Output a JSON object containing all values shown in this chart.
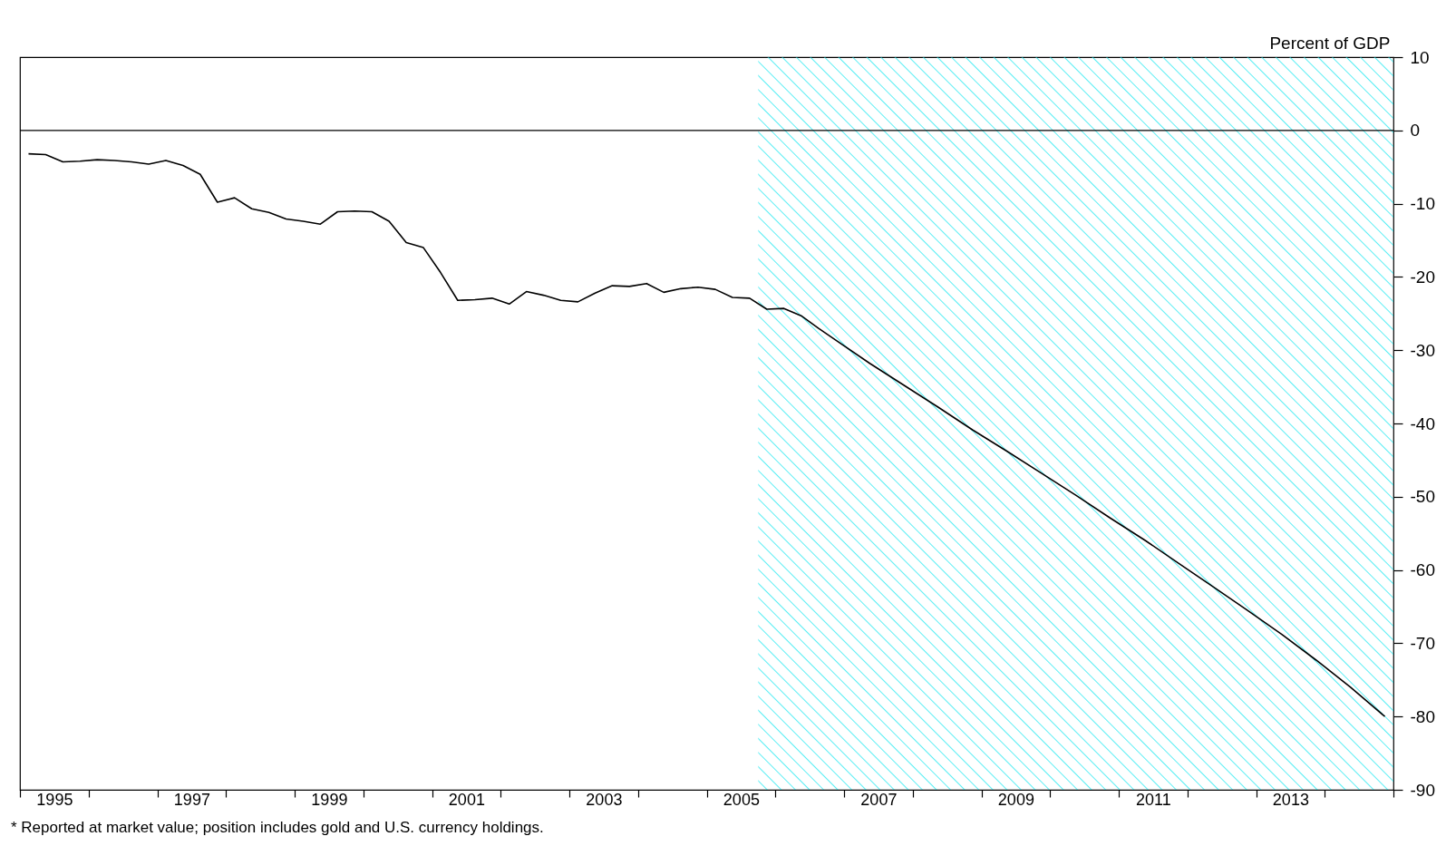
{
  "chart_data": {
    "type": "line",
    "ylabel": "Percent of GDP",
    "annotations": [
      "* Reported at market value; position includes gold and U.S. currency holdings."
    ],
    "xlim": [
      1995,
      2015
    ],
    "ylim": [
      -90,
      10
    ],
    "yticks": [
      10,
      0,
      -10,
      -20,
      -30,
      -40,
      -50,
      -60,
      -70,
      -80,
      -90
    ],
    "xticks": [
      {
        "value": 1995,
        "label": null
      },
      {
        "value": 1996,
        "label": null
      },
      {
        "value": 1997,
        "label": null
      },
      {
        "value": 1998,
        "label": null
      },
      {
        "value": 1999,
        "label": null
      },
      {
        "value": 2000,
        "label": null
      },
      {
        "value": 2001,
        "label": null
      },
      {
        "value": 2002,
        "label": null
      },
      {
        "value": 2003,
        "label": null
      },
      {
        "value": 2004,
        "label": null
      },
      {
        "value": 2005,
        "label": null
      },
      {
        "value": 2006,
        "label": null
      },
      {
        "value": 2007,
        "label": null
      },
      {
        "value": 2008,
        "label": null
      },
      {
        "value": 2009,
        "label": null
      },
      {
        "value": 2010,
        "label": null
      },
      {
        "value": 2011,
        "label": null
      },
      {
        "value": 2012,
        "label": null
      },
      {
        "value": 2013,
        "label": null
      },
      {
        "value": 2014,
        "label": null
      },
      {
        "value": 2015,
        "label": null
      },
      {
        "value": 1995.5,
        "label": "1995"
      },
      {
        "value": 1997.5,
        "label": "1997"
      },
      {
        "value": 1999.5,
        "label": "1999"
      },
      {
        "value": 2001.5,
        "label": "2001"
      },
      {
        "value": 2003.5,
        "label": "2003"
      },
      {
        "value": 2005.5,
        "label": "2005"
      },
      {
        "value": 2007.5,
        "label": "2007"
      },
      {
        "value": 2009.5,
        "label": "2009"
      },
      {
        "value": 2011.5,
        "label": "2011"
      },
      {
        "value": 2013.5,
        "label": "2013"
      }
    ],
    "grid": false,
    "ref_lines": [
      {
        "axis": "y",
        "value": 0,
        "color": "#000000"
      }
    ],
    "bands": [
      {
        "axis": "x",
        "from": 2005.75,
        "to": 2015,
        "color": "#00e5ee"
      }
    ],
    "series": [
      {
        "color": "#000000",
        "x": [
          1995.125,
          1995.375,
          1995.625,
          1995.875,
          1996.125,
          1996.375,
          1996.625,
          1996.875,
          1997.125,
          1997.375,
          1997.625,
          1997.875,
          1998.125,
          1998.375,
          1998.625,
          1998.875,
          1999.125,
          1999.375,
          1999.625,
          1999.875,
          2000.125,
          2000.375,
          2000.625,
          2000.875,
          2001.125,
          2001.375,
          2001.625,
          2001.875,
          2002.125,
          2002.375,
          2002.625,
          2002.875,
          2003.125,
          2003.375,
          2003.625,
          2003.875,
          2004.125,
          2004.375,
          2004.625,
          2004.875,
          2005.125,
          2005.375,
          2005.625,
          2005.875,
          2006.125,
          2006.375,
          2006.625,
          2006.875,
          2007.375,
          2007.875,
          2008.375,
          2008.875,
          2009.375,
          2009.875,
          2010.375,
          2010.875,
          2011.375,
          2011.875,
          2012.375,
          2012.875,
          2013.375,
          2013.875,
          2014.375,
          2014.875
        ],
        "values": [
          -3.2,
          -3.3,
          -4.3,
          -4.2,
          -4.0,
          -4.1,
          -4.3,
          -4.6,
          -4.1,
          -4.8,
          -6.0,
          -9.8,
          -9.2,
          -10.7,
          -11.2,
          -12.1,
          -12.4,
          -12.8,
          -11.1,
          -11.0,
          -11.1,
          -12.4,
          -15.3,
          -16.0,
          -19.4,
          -23.2,
          -23.1,
          -22.9,
          -23.7,
          -22.0,
          -22.5,
          -23.2,
          -23.4,
          -22.2,
          -21.2,
          -21.3,
          -20.9,
          -22.1,
          -21.6,
          -21.4,
          -21.7,
          -22.8,
          -22.9,
          -24.4,
          -24.3,
          -25.3,
          -27.0,
          -28.6,
          -31.8,
          -34.8,
          -37.8,
          -40.9,
          -43.8,
          -46.8,
          -49.8,
          -52.9,
          -55.9,
          -59.1,
          -62.3,
          -65.5,
          -68.8,
          -72.3,
          -76.0,
          -80.0
        ]
      }
    ]
  }
}
